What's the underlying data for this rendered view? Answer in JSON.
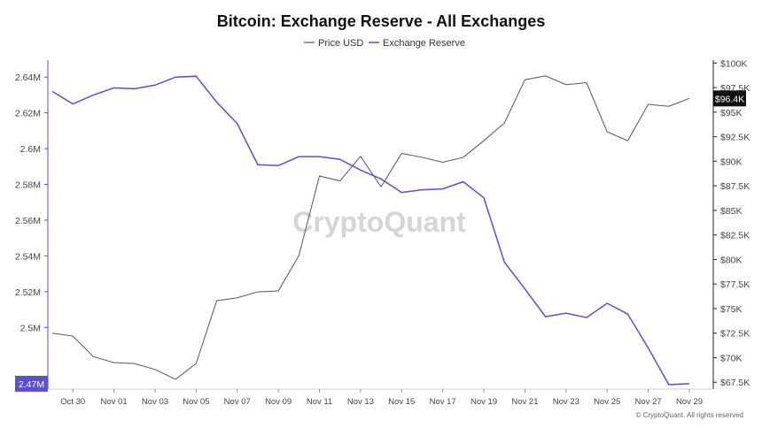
{
  "chart_data": {
    "type": "line",
    "title": "Bitcoin: Exchange Reserve - All Exchanges",
    "legend": {
      "placement": "top-center",
      "items": [
        "Price USD",
        "Exchange Reserve"
      ]
    },
    "colors": {
      "price": "#555555",
      "reserve": "#5b4fd6",
      "price_badge": "#111111",
      "reserve_badge": "#5b4fd6"
    },
    "x_ticks": [
      "Oct 30",
      "Nov 01",
      "Nov 03",
      "Nov 05",
      "Nov 07",
      "Nov 09",
      "Nov 11",
      "Nov 13",
      "Nov 15",
      "Nov 17",
      "Nov 19",
      "Nov 21",
      "Nov 23",
      "Nov 25",
      "Nov 27",
      "Nov 29"
    ],
    "x": [
      "Oct 29",
      "Oct 30",
      "Oct 31",
      "Nov 01",
      "Nov 02",
      "Nov 03",
      "Nov 04",
      "Nov 05",
      "Nov 06",
      "Nov 07",
      "Nov 08",
      "Nov 09",
      "Nov 10",
      "Nov 11",
      "Nov 12",
      "Nov 13",
      "Nov 14",
      "Nov 15",
      "Nov 16",
      "Nov 17",
      "Nov 18",
      "Nov 19",
      "Nov 20",
      "Nov 21",
      "Nov 22",
      "Nov 23",
      "Nov 24",
      "Nov 25",
      "Nov 26",
      "Nov 27",
      "Nov 28",
      "Nov 29"
    ],
    "y_left": {
      "ticks": [
        "2.64M",
        "2.62M",
        "2.6M",
        "2.58M",
        "2.56M",
        "2.54M",
        "2.52M",
        "2.5M"
      ],
      "tick_values": [
        2.64,
        2.62,
        2.6,
        2.58,
        2.56,
        2.54,
        2.52,
        2.5
      ],
      "range": [
        2.4655,
        2.6495
      ],
      "unit": "M"
    },
    "y_right": {
      "ticks": [
        "$100K",
        "$97.5K",
        "$95K",
        "$92.5K",
        "$90K",
        "$87.5K",
        "$85K",
        "$82.5K",
        "$80K",
        "$77.5K",
        "$75K",
        "$72.5K",
        "$70K",
        "$67.5K"
      ],
      "tick_values": [
        100000,
        97500,
        95000,
        92500,
        90000,
        87500,
        85000,
        82500,
        80000,
        77500,
        75000,
        72500,
        70000,
        67500
      ],
      "range": [
        66800,
        100300
      ]
    },
    "series": [
      {
        "name": "Exchange Reserve",
        "axis": "left",
        "values": [
          2.632,
          2.625,
          2.63,
          2.634,
          2.6335,
          2.6355,
          2.64,
          2.6405,
          2.626,
          2.614,
          2.591,
          2.5905,
          2.5955,
          2.5955,
          2.594,
          2.588,
          2.583,
          2.5755,
          2.577,
          2.5775,
          2.5815,
          2.5725,
          2.5365,
          2.5215,
          2.506,
          2.508,
          2.5055,
          2.5135,
          2.5075,
          2.4885,
          2.468,
          2.4685
        ]
      },
      {
        "name": "Price USD",
        "axis": "right",
        "values": [
          72500,
          72200,
          70100,
          69500,
          69400,
          68800,
          67800,
          69400,
          75800,
          76100,
          76700,
          76800,
          80400,
          88500,
          88000,
          90500,
          87400,
          90800,
          90400,
          89900,
          90400,
          92100,
          93900,
          98300,
          98700,
          97800,
          98000,
          93000,
          92100,
          95800,
          95600,
          96400
        ]
      }
    ],
    "badges": {
      "price": "$96.4K",
      "reserve": "2.47M"
    },
    "watermark": "CryptoQuant",
    "copyright": "© CryptoQuant. All rights reserved",
    "grid": false
  }
}
